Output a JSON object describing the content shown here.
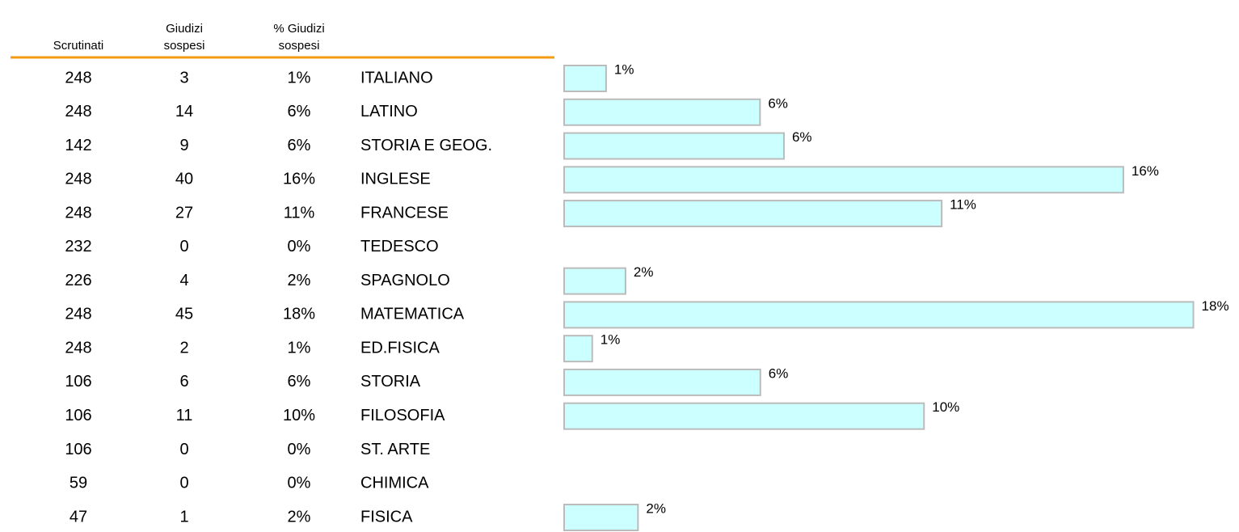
{
  "table": {
    "headers": [
      [
        "Scrutinati"
      ],
      [
        "Giudizi",
        "sospesi"
      ],
      [
        "% Giudizi",
        "sospesi"
      ]
    ],
    "rows": [
      [
        248,
        3
      ],
      [
        248,
        14
      ],
      [
        142,
        9
      ],
      [
        248,
        40
      ],
      [
        248,
        27
      ],
      [
        232,
        0
      ],
      [
        226,
        4
      ],
      [
        248,
        45
      ],
      [
        248,
        2
      ],
      [
        106,
        6
      ],
      [
        106,
        11
      ],
      [
        106,
        0
      ],
      [
        59,
        0
      ],
      [
        47,
        1
      ]
    ]
  },
  "chart_data": {
    "type": "bar",
    "orientation": "horizontal",
    "categories": [
      "ITALIANO",
      "LATINO",
      "STORIA E GEOG.",
      "INGLESE",
      "FRANCESE",
      "TEDESCO",
      "SPAGNOLO",
      "MATEMATICA",
      "ED.FISICA",
      "STORIA",
      "FILOSOFIA",
      "ST. ARTE",
      "CHIMICA",
      "FISICA"
    ],
    "values": [
      1.21,
      5.65,
      6.34,
      16.13,
      10.89,
      0,
      1.77,
      18.15,
      0.81,
      5.66,
      10.38,
      0,
      0,
      2.13
    ],
    "value_labels": [
      "1%",
      "6%",
      "6%",
      "16%",
      "11%",
      "0%",
      "2%",
      "18%",
      "1%",
      "6%",
      "10%",
      "0%",
      "0%",
      "2%"
    ],
    "color": "#ccffff",
    "xlim": [
      0,
      19
    ]
  }
}
